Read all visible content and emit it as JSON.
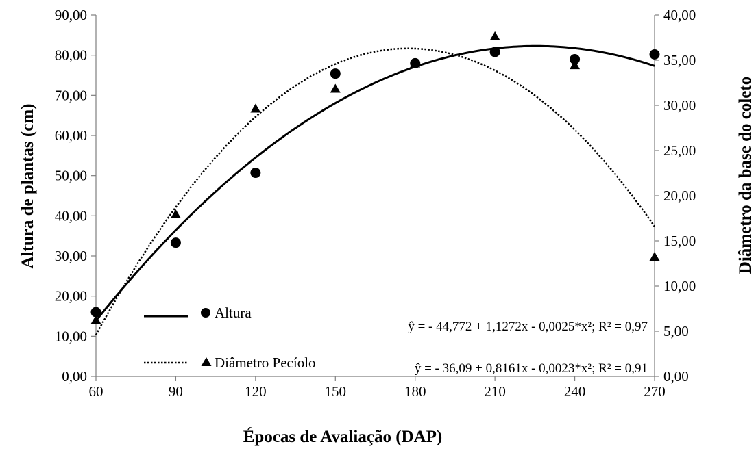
{
  "chart_data": {
    "type": "scatter",
    "xlabel": "Épocas de Avaliação (DAP)",
    "ylabel": "Altura de plantas (cm)",
    "y2label": "Diâmetro da base do coleto",
    "x_ticks": [
      60,
      90,
      120,
      150,
      180,
      210,
      240,
      270
    ],
    "y_ticks": [
      "0,00",
      "10,00",
      "20,00",
      "30,00",
      "40,00",
      "50,00",
      "60,00",
      "70,00",
      "80,00",
      "90,00"
    ],
    "y2_ticks": [
      "0,00",
      "5,00",
      "10,00",
      "15,00",
      "20,00",
      "25,00",
      "30,00",
      "35,00",
      "40,00"
    ],
    "xlim": [
      60,
      270
    ],
    "ylim": [
      0,
      90
    ],
    "y2lim": [
      0,
      40
    ],
    "grid": false,
    "legend_position": "bottom-left",
    "series": [
      {
        "name": "Altura",
        "axis": "left",
        "marker": "circle",
        "trend_line": "solid",
        "x": [
          60,
          90,
          120,
          150,
          180,
          210,
          240,
          270
        ],
        "y": [
          16.0,
          33.3,
          50.7,
          75.4,
          78.0,
          80.8,
          79.0,
          80.2
        ],
        "fit": {
          "a": -44.772,
          "b": 1.1272,
          "c": -0.0025
        },
        "equation": "ŷ = - 44,772 + 1,1272x - 0,0025*x²; R² = 0,97"
      },
      {
        "name": "Diâmetro Pecíolo",
        "axis": "right",
        "marker": "triangle",
        "trend_line": "dotted",
        "x": [
          60,
          90,
          120,
          150,
          180,
          210,
          240,
          270
        ],
        "y": [
          6.2,
          17.9,
          29.6,
          31.8,
          34.6,
          37.6,
          34.4,
          13.2
        ],
        "fit": {
          "a": -36.09,
          "b": 0.8161,
          "c": -0.0023
        },
        "equation": "ŷ = - 36,09 + 0,8161x - 0,0023*x²; R² = 0,91"
      }
    ]
  }
}
